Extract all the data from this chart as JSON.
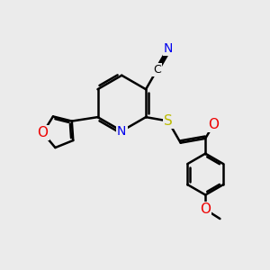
{
  "bg_color": "#ebebeb",
  "bond_color": "#000000",
  "bond_width": 1.8,
  "atom_colors": {
    "N": "#0000ee",
    "O": "#ee0000",
    "S": "#bbbb00",
    "C": "#000000"
  },
  "font_size": 10,
  "fig_size": [
    3.0,
    3.0
  ],
  "dpi": 100
}
